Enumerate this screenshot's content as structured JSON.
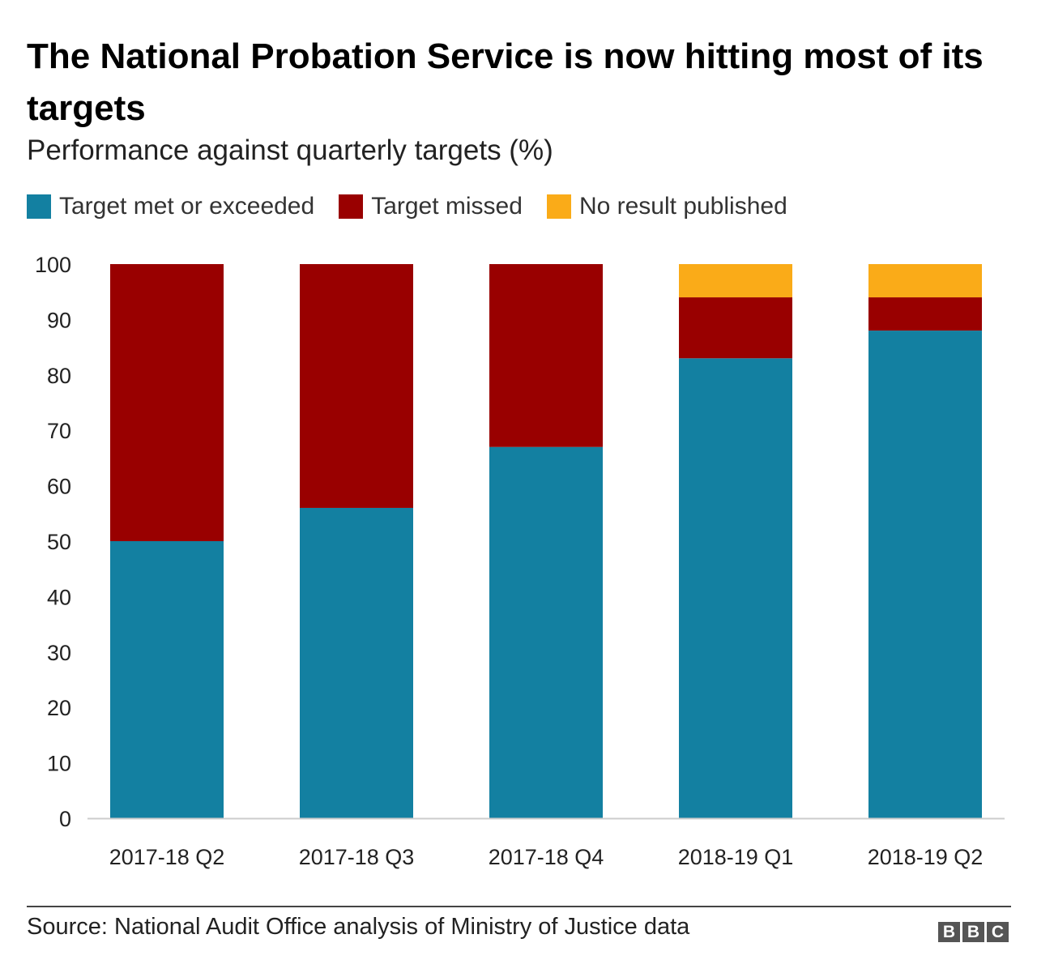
{
  "chart_data": {
    "type": "bar",
    "stacked": true,
    "title": "The National Probation Service is now hitting most of its targets",
    "subtitle": "Performance against quarterly targets (%)",
    "xlabel": "",
    "ylabel": "",
    "ylim": [
      0,
      100
    ],
    "yticks": [
      0,
      10,
      20,
      30,
      40,
      50,
      60,
      70,
      80,
      90,
      100
    ],
    "categories": [
      "2017-18 Q2",
      "2017-18 Q3",
      "2017-18 Q4",
      "2018-19 Q1",
      "2018-19 Q2"
    ],
    "series": [
      {
        "name": "Target met or exceeded",
        "color": "#1380A1",
        "values": [
          50,
          56,
          67,
          83,
          88
        ]
      },
      {
        "name": "Target missed",
        "color": "#990000",
        "values": [
          50,
          44,
          33,
          11,
          6
        ]
      },
      {
        "name": "No result published",
        "color": "#FAAB18",
        "values": [
          0,
          0,
          0,
          6,
          6
        ]
      }
    ],
    "legend_position": "top-left",
    "grid": false
  },
  "footer": {
    "source": "Source: National Audit Office analysis of Ministry of Justice data",
    "logo": "BBC"
  }
}
